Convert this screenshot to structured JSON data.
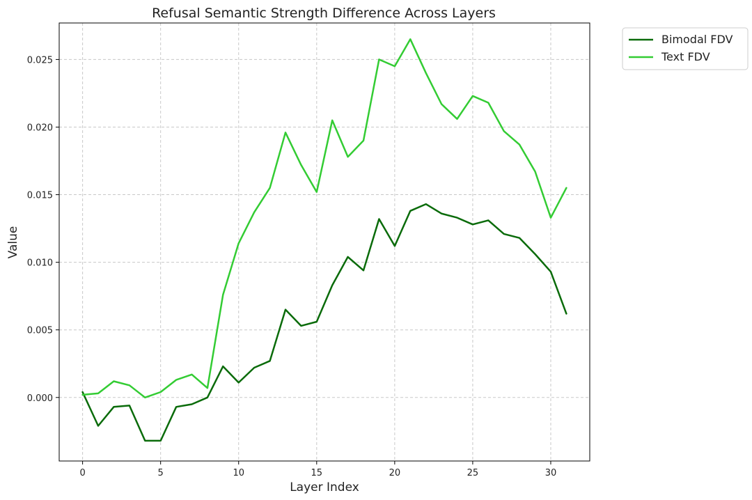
{
  "chart_data": {
    "type": "line",
    "title": "Refusal Semantic Strength Difference Across Layers",
    "xlabel": "Layer Index",
    "ylabel": "Value",
    "x": [
      0,
      1,
      2,
      3,
      4,
      5,
      6,
      7,
      8,
      9,
      10,
      11,
      12,
      13,
      14,
      15,
      16,
      17,
      18,
      19,
      20,
      21,
      22,
      23,
      24,
      25,
      26,
      27,
      28,
      29,
      30,
      31
    ],
    "xlim": [
      -1.5,
      32.5
    ],
    "ylim": [
      -0.0047,
      0.0277
    ],
    "xticks": [
      0,
      5,
      10,
      15,
      20,
      25,
      30
    ],
    "xtick_labels": [
      "0",
      "5",
      "10",
      "15",
      "20",
      "25",
      "30"
    ],
    "yticks": [
      0.0,
      0.005,
      0.01,
      0.015,
      0.02,
      0.025
    ],
    "ytick_labels": [
      "0.000",
      "0.005",
      "0.010",
      "0.015",
      "0.020",
      "0.025"
    ],
    "grid": true,
    "legend_position": "outside-top-right",
    "series": [
      {
        "name": "Bimodal FDV",
        "color": "#0a6b0a",
        "values": [
          0.0004,
          -0.0021,
          -0.0007,
          -0.0006,
          -0.0032,
          -0.0032,
          -0.0007,
          -0.0005,
          0.0,
          0.0023,
          0.0011,
          0.0022,
          0.0027,
          0.0065,
          0.0053,
          0.0056,
          0.0083,
          0.0104,
          0.0094,
          0.0132,
          0.0112,
          0.0138,
          0.0143,
          0.0136,
          0.0133,
          0.0128,
          0.0131,
          0.0121,
          0.0118,
          0.0106,
          0.0093,
          0.0062
        ]
      },
      {
        "name": "Text FDV",
        "color": "#33cc33",
        "values": [
          0.0002,
          0.0003,
          0.0012,
          0.0009,
          0.0,
          0.0004,
          0.0013,
          0.0017,
          0.0007,
          0.0076,
          0.0114,
          0.0137,
          0.0155,
          0.0196,
          0.0172,
          0.0152,
          0.0205,
          0.0178,
          0.019,
          0.025,
          0.0245,
          0.0265,
          0.024,
          0.0217,
          0.0206,
          0.0223,
          0.0218,
          0.0197,
          0.0187,
          0.0167,
          0.0133,
          0.0155
        ]
      }
    ]
  }
}
